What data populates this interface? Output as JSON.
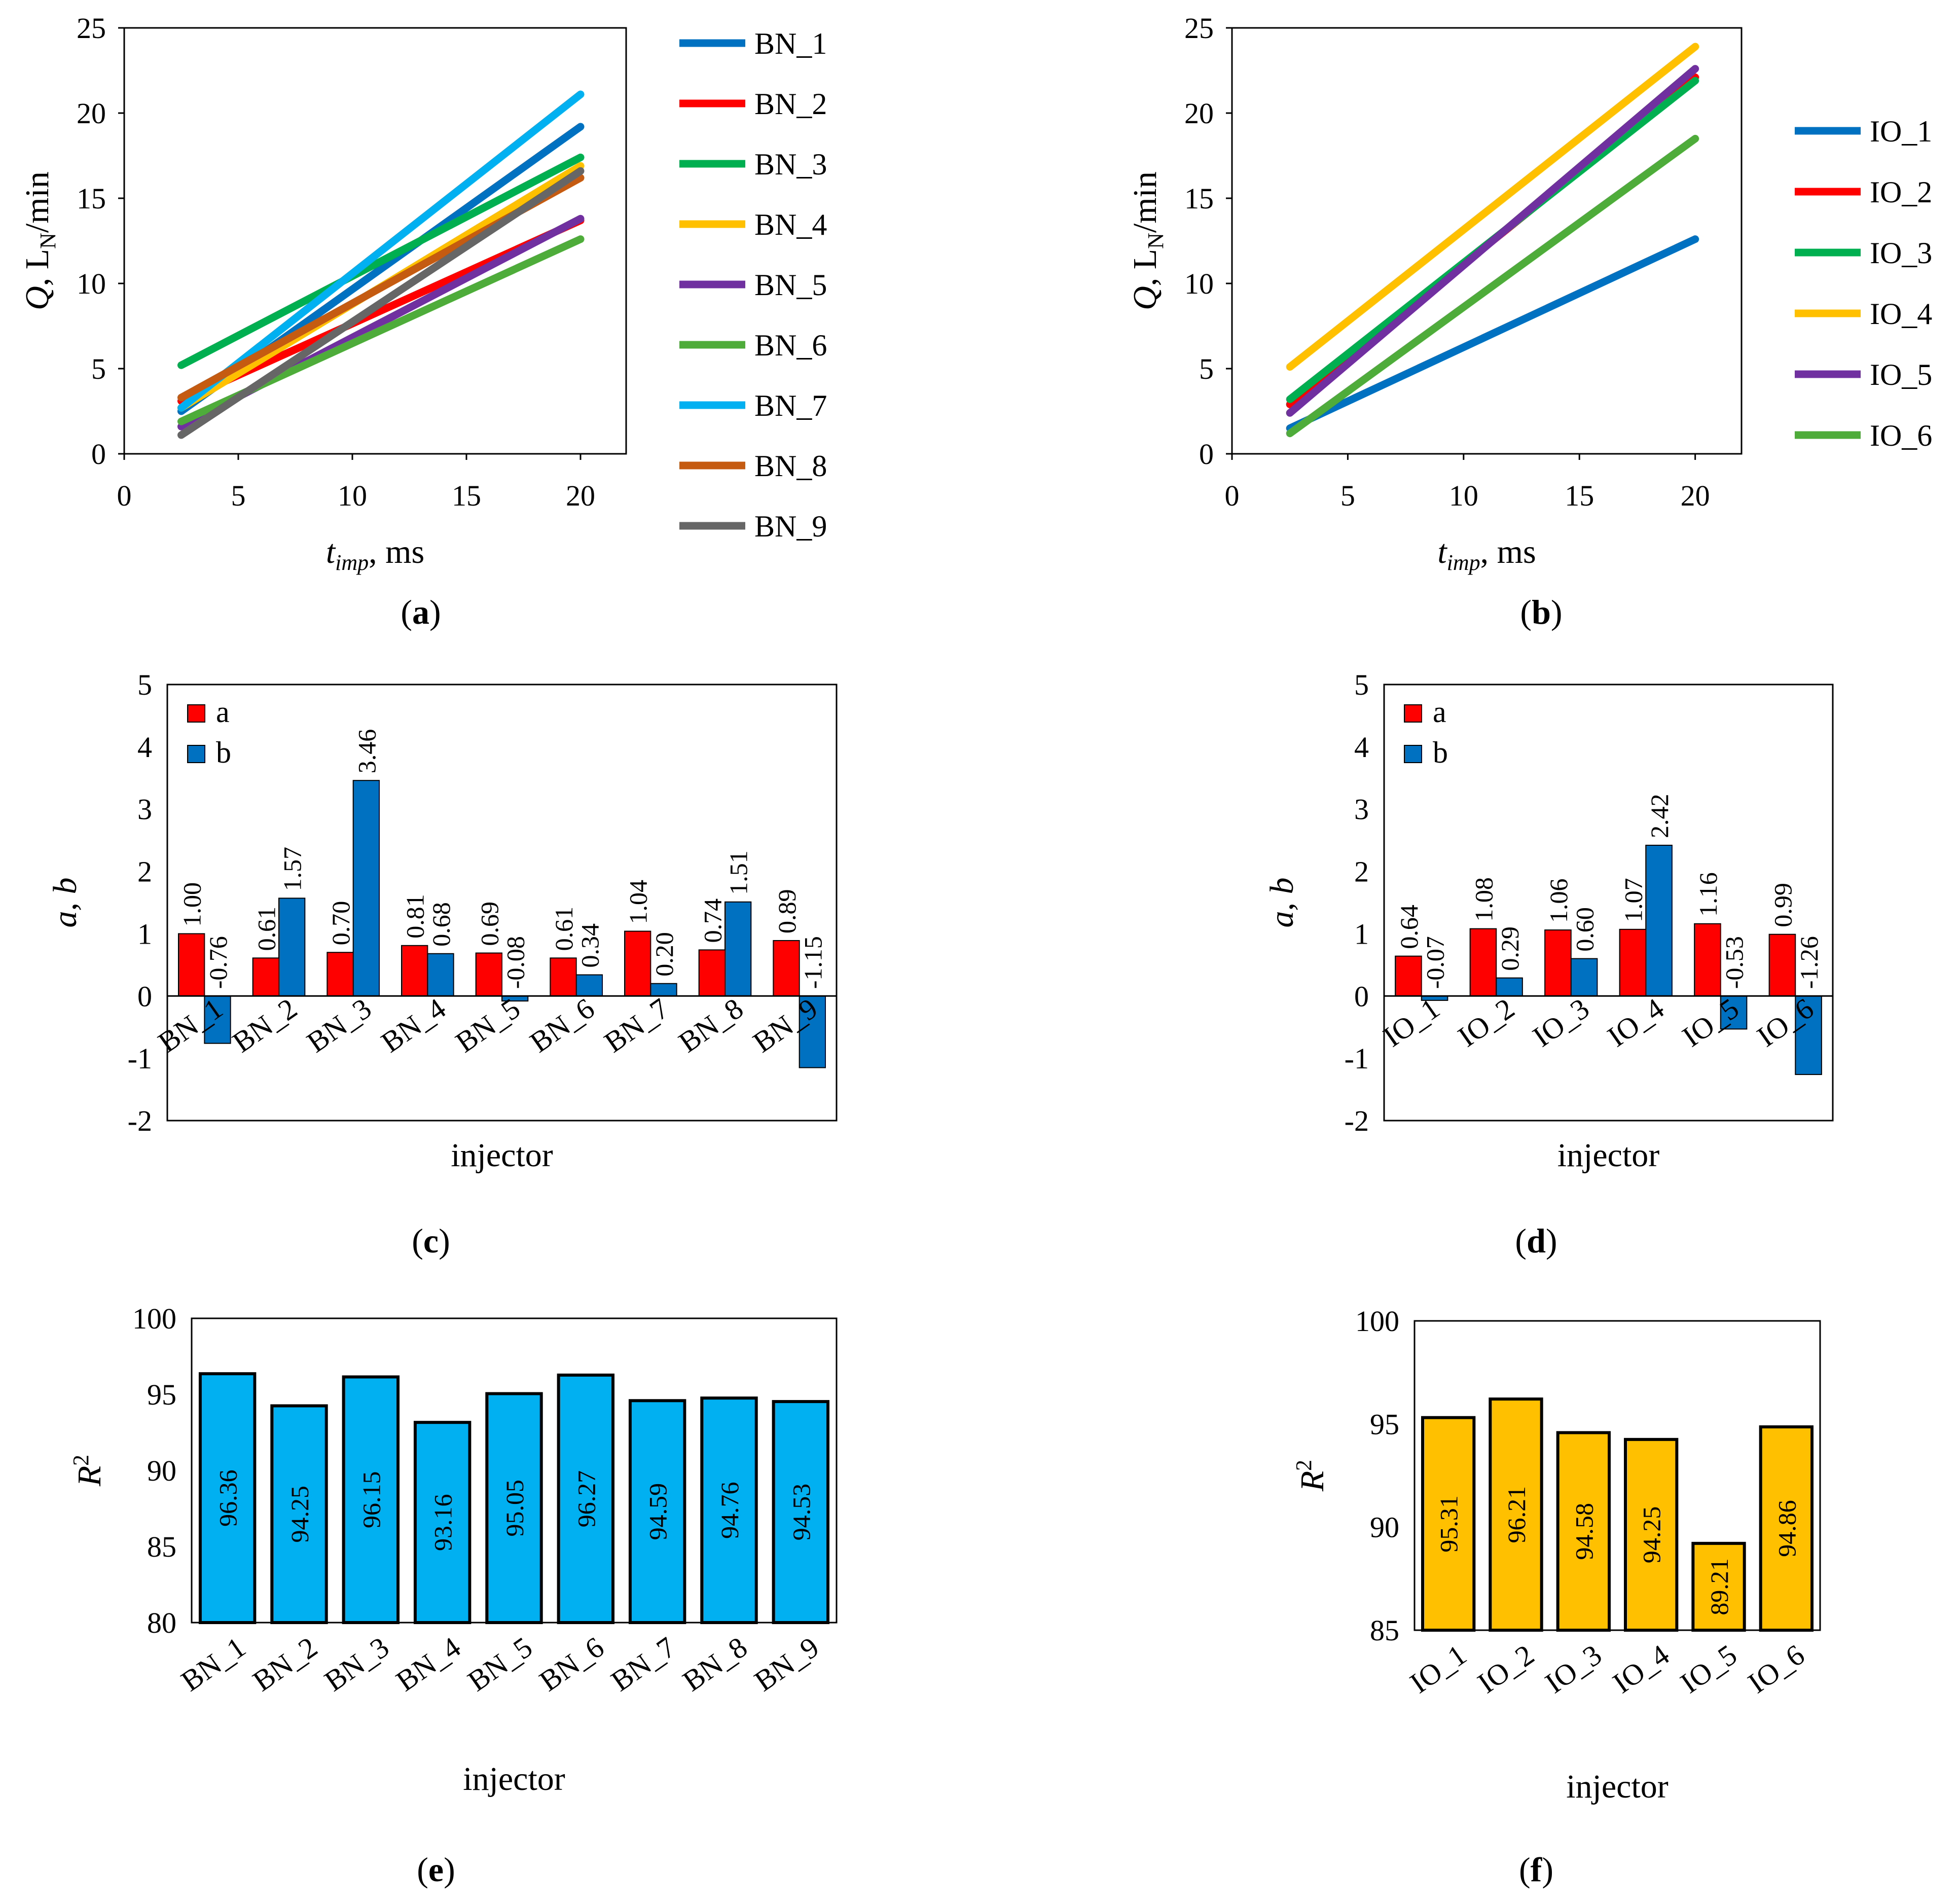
{
  "chart_data": [
    {
      "id": "a",
      "panel_label": "a",
      "type": "line",
      "x_label": "t",
      "x_label_sub": "imp",
      "x_label_suffix": ", ms",
      "y_label": "Q",
      "y_label_mid": ", L",
      "y_label_sub": "N",
      "y_label_suffix": "/min",
      "xlim": [
        0,
        22
      ],
      "ylim": [
        0,
        25
      ],
      "xticks": [
        "0",
        "5",
        "10",
        "15",
        "20"
      ],
      "yticks": [
        "0",
        "5",
        "10",
        "15",
        "20",
        "25"
      ],
      "series": [
        {
          "name": "BN_1",
          "color": "#0070C0",
          "x": [
            2.5,
            20
          ],
          "y": [
            2.5,
            19.2
          ]
        },
        {
          "name": "BN_2",
          "color": "#FF0000",
          "x": [
            2.5,
            20
          ],
          "y": [
            3.1,
            13.7
          ]
        },
        {
          "name": "BN_3",
          "color": "#00B050",
          "x": [
            2.5,
            20
          ],
          "y": [
            5.2,
            17.4
          ]
        },
        {
          "name": "BN_4",
          "color": "#FFC000",
          "x": [
            2.5,
            20
          ],
          "y": [
            2.7,
            16.9
          ]
        },
        {
          "name": "BN_5",
          "color": "#7030A0",
          "x": [
            2.5,
            20
          ],
          "y": [
            1.6,
            13.8
          ]
        },
        {
          "name": "BN_6",
          "color": "#4EAC3B",
          "x": [
            2.5,
            20
          ],
          "y": [
            1.9,
            12.6
          ]
        },
        {
          "name": "BN_7",
          "color": "#00B0F0",
          "x": [
            2.5,
            20
          ],
          "y": [
            2.7,
            21.1
          ]
        },
        {
          "name": "BN_8",
          "color": "#C55A11",
          "x": [
            2.5,
            20
          ],
          "y": [
            3.3,
            16.2
          ]
        },
        {
          "name": "BN_9",
          "color": "#666666",
          "x": [
            2.5,
            20
          ],
          "y": [
            1.1,
            16.6
          ]
        }
      ]
    },
    {
      "id": "b",
      "panel_label": "b",
      "type": "line",
      "x_label": "t",
      "x_label_sub": "imp",
      "x_label_suffix": ", ms",
      "y_label": "Q",
      "y_label_mid": ", L",
      "y_label_sub": "N",
      "y_label_suffix": "/min",
      "xlim": [
        0,
        22
      ],
      "ylim": [
        0,
        25
      ],
      "xticks": [
        "0",
        "5",
        "10",
        "15",
        "20"
      ],
      "yticks": [
        "0",
        "5",
        "10",
        "15",
        "20",
        "25"
      ],
      "series": [
        {
          "name": "IO_1",
          "color": "#0070C0",
          "x": [
            2.5,
            20
          ],
          "y": [
            1.5,
            12.6
          ]
        },
        {
          "name": "IO_2",
          "color": "#FF0000",
          "x": [
            2.5,
            20
          ],
          "y": [
            2.9,
            22.1
          ]
        },
        {
          "name": "IO_3",
          "color": "#00B050",
          "x": [
            2.5,
            20
          ],
          "y": [
            3.2,
            21.9
          ]
        },
        {
          "name": "IO_4",
          "color": "#FFC000",
          "x": [
            2.5,
            20
          ],
          "y": [
            5.1,
            23.9
          ]
        },
        {
          "name": "IO_5",
          "color": "#7030A0",
          "x": [
            2.5,
            20
          ],
          "y": [
            2.4,
            22.6
          ]
        },
        {
          "name": "IO_6",
          "color": "#4EAC3B",
          "x": [
            2.5,
            20
          ],
          "y": [
            1.2,
            18.5
          ]
        }
      ]
    },
    {
      "id": "c",
      "panel_label": "c",
      "type": "bar",
      "x_label": "injector",
      "y_label": "a, b",
      "ylim": [
        -2,
        5
      ],
      "yticks": [
        "-2",
        "-1",
        "0",
        "1",
        "2",
        "3",
        "4",
        "5"
      ],
      "categories": [
        "BN_1",
        "BN_2",
        "BN_3",
        "BN_4",
        "BN_5",
        "BN_6",
        "BN_7",
        "BN_8",
        "BN_9"
      ],
      "series": [
        {
          "name": "a",
          "color": "#FF0000",
          "values": [
            1.0,
            0.61,
            0.7,
            0.81,
            0.69,
            0.61,
            1.04,
            0.74,
            0.89
          ],
          "labels": [
            "1.00",
            "0.61",
            "0.70",
            "0.81",
            "0.69",
            "0.61",
            "1.04",
            "0.74",
            "0.89"
          ]
        },
        {
          "name": "b",
          "color": "#0070C0",
          "values": [
            -0.76,
            1.57,
            3.46,
            0.68,
            -0.08,
            0.34,
            0.2,
            1.51,
            -1.15
          ],
          "labels": [
            "-0.76",
            "1.57",
            "3.46",
            "0.68",
            "-0.08",
            "0.34",
            "0.20",
            "1.51",
            "-1.15"
          ]
        }
      ]
    },
    {
      "id": "d",
      "panel_label": "d",
      "type": "bar",
      "x_label": "injector",
      "y_label": "a, b",
      "ylim": [
        -2,
        5
      ],
      "yticks": [
        "-2",
        "-1",
        "0",
        "1",
        "2",
        "3",
        "4",
        "5"
      ],
      "categories": [
        "IO_1",
        "IO_2",
        "IO_3",
        "IO_4",
        "IO_5",
        "IO_6"
      ],
      "series": [
        {
          "name": "a",
          "color": "#FF0000",
          "values": [
            0.64,
            1.08,
            1.06,
            1.07,
            1.16,
            0.99
          ],
          "labels": [
            "0.64",
            "1.08",
            "1.06",
            "1.07",
            "1.16",
            "0.99"
          ]
        },
        {
          "name": "b",
          "color": "#0070C0",
          "values": [
            -0.07,
            0.29,
            0.6,
            2.42,
            -0.53,
            -1.26
          ],
          "labels": [
            "-0.07",
            "0.29",
            "0.60",
            "2.42",
            "-0.53",
            "-1.26"
          ]
        }
      ]
    },
    {
      "id": "e",
      "panel_label": "e",
      "type": "bar",
      "x_label": "injector",
      "y_label": "R",
      "y_label_sup": "2",
      "ylim": [
        80,
        100
      ],
      "yticks": [
        "80",
        "85",
        "90",
        "95",
        "100"
      ],
      "categories": [
        "BN_1",
        "BN_2",
        "BN_3",
        "BN_4",
        "BN_5",
        "BN_6",
        "BN_7",
        "BN_8",
        "BN_9"
      ],
      "series": [
        {
          "name": "R2",
          "color": "#00B0F0",
          "values": [
            96.36,
            94.25,
            96.15,
            93.16,
            95.05,
            96.27,
            94.59,
            94.76,
            94.53
          ],
          "labels": [
            "96.36",
            "94.25",
            "96.15",
            "93.16",
            "95.05",
            "96.27",
            "94.59",
            "94.76",
            "94.53"
          ]
        }
      ]
    },
    {
      "id": "f",
      "panel_label": "f",
      "type": "bar",
      "x_label": "injector",
      "y_label": "R",
      "y_label_sup": "2",
      "ylim": [
        85,
        100
      ],
      "yticks": [
        "85",
        "90",
        "95",
        "100"
      ],
      "categories": [
        "IO_1",
        "IO_2",
        "IO_3",
        "IO_4",
        "IO_5",
        "IO_6"
      ],
      "series": [
        {
          "name": "R2",
          "color": "#FFC000",
          "values": [
            95.31,
            96.21,
            94.58,
            94.25,
            89.21,
            94.86
          ],
          "labels": [
            "95.31",
            "96.21",
            "94.58",
            "94.25",
            "89.21",
            "94.86"
          ]
        }
      ]
    }
  ]
}
